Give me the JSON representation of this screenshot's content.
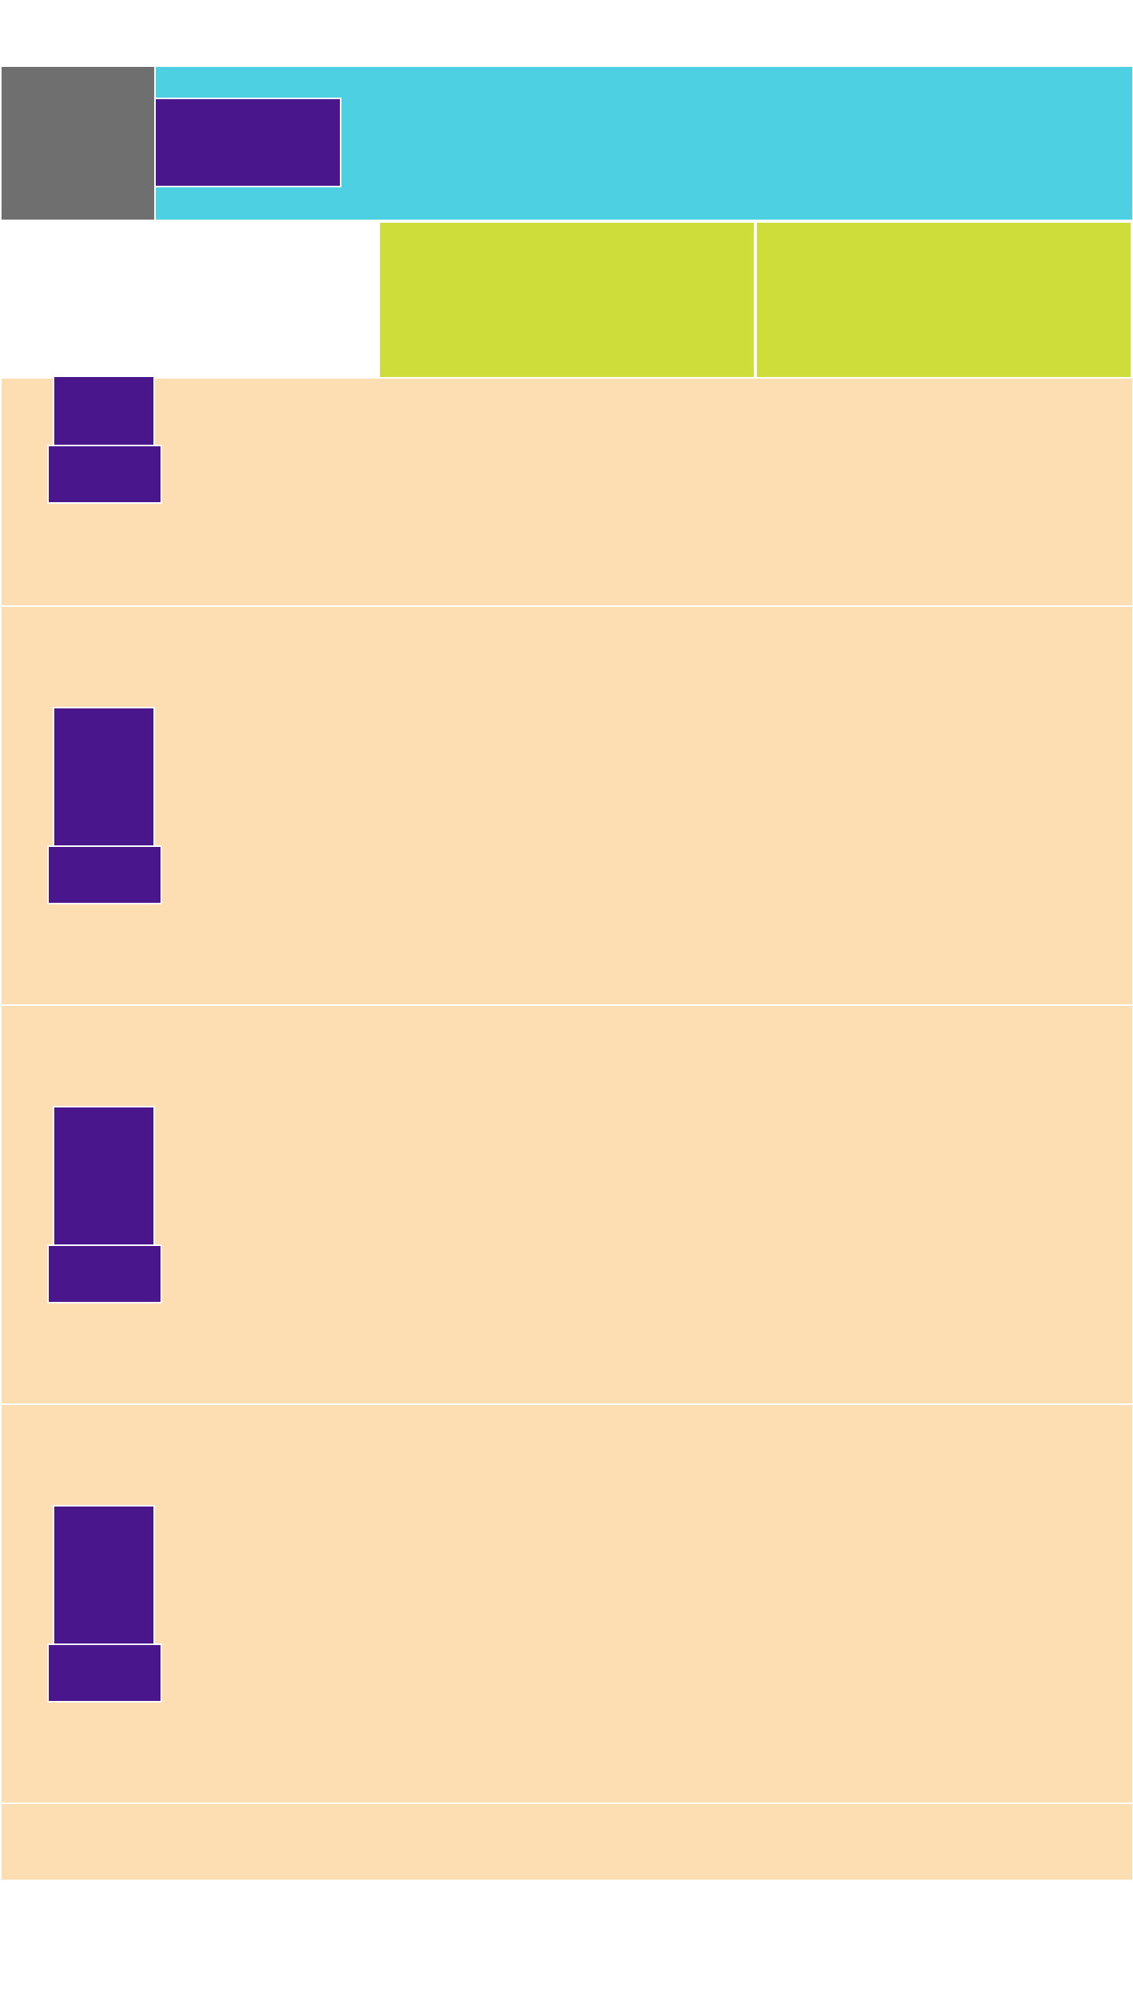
{
  "header": {
    "left_panel": "",
    "title_block": ""
  },
  "tiles": [
    "",
    ""
  ],
  "sections": [
    {
      "image": "",
      "button": ""
    },
    {
      "image": "",
      "button": ""
    },
    {
      "image": "",
      "button": ""
    },
    {
      "image": "",
      "button": ""
    }
  ],
  "footer": {
    "text": ""
  },
  "colors": {
    "header_left": "#6f6f6f",
    "header": "#4dd0e2",
    "accent": "#4a168c",
    "tile": "#cfdd3a",
    "section": "#fcdeb2",
    "background": "#ffffff"
  }
}
